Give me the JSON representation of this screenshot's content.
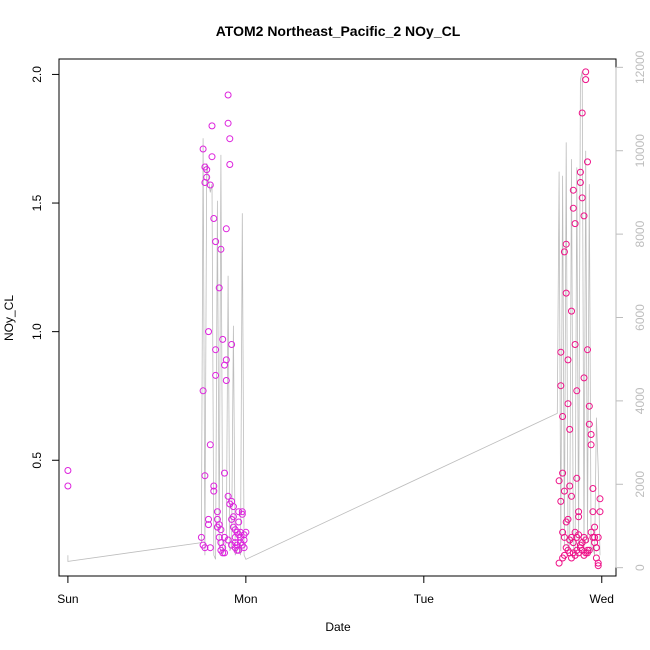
{
  "chart_data": {
    "type": "scatter",
    "title": "ATOM2 Northeast_Pacific_2 NOy_CL",
    "xlabel": "Date",
    "ylabel": "NOy_CL",
    "x_ticks": [
      "Sun",
      "Mon",
      "Tue",
      "Wed"
    ],
    "x_tick_values": [
      0,
      1,
      2,
      3
    ],
    "xlim": [
      -0.05,
      3.08
    ],
    "ylim": [
      0.05,
      2.06
    ],
    "y_ticks": [
      0.5,
      1.0,
      1.5,
      2.0
    ],
    "y_tick_labels": [
      "0.5",
      "1.0",
      "1.5",
      "2.0"
    ],
    "y2lim": [
      -200,
      12200
    ],
    "y2_ticks": [
      0,
      2000,
      4000,
      6000,
      8000,
      10000,
      12000
    ],
    "y2_tick_labels": [
      "0",
      "2000",
      "4000",
      "6000",
      "8000",
      "10000",
      "12000"
    ],
    "grid": false,
    "colors": {
      "points_early": "#dd22dd",
      "points_late": "#ee1188",
      "altitude_line": "#bdbdbd"
    },
    "series": [
      {
        "kind": "points",
        "color": "#dd22dd",
        "x": [
          0.0,
          0.0,
          0.75,
          0.76,
          0.76,
          0.77,
          0.77,
          0.78,
          0.78,
          0.79,
          0.79,
          0.8,
          0.8,
          0.81,
          0.81,
          0.82,
          0.82,
          0.83,
          0.83,
          0.84,
          0.84,
          0.85,
          0.85,
          0.86,
          0.86,
          0.87,
          0.87,
          0.88,
          0.88,
          0.89,
          0.89,
          0.9,
          0.9,
          0.91,
          0.91,
          0.92,
          0.92,
          0.93,
          0.93,
          0.94,
          0.94,
          0.95,
          0.95,
          0.96,
          0.96,
          0.97,
          0.97,
          0.98,
          0.98,
          0.99,
          0.99,
          1.0,
          0.76,
          0.77,
          0.79,
          0.8,
          0.82,
          0.83,
          0.85,
          0.86,
          0.87,
          0.88,
          0.89,
          0.9,
          0.91,
          0.92,
          0.93,
          0.94,
          0.95,
          0.96,
          0.97,
          0.98,
          0.99,
          0.77,
          0.84,
          0.86,
          0.88,
          0.9,
          0.92,
          0.94,
          0.96
        ],
        "y": [
          0.46,
          0.4,
          0.2,
          0.17,
          1.71,
          1.64,
          1.58,
          1.6,
          1.63,
          0.27,
          0.25,
          0.16,
          1.57,
          1.8,
          1.68,
          0.38,
          0.4,
          0.93,
          0.83,
          0.3,
          0.27,
          0.25,
          0.2,
          0.18,
          0.15,
          0.16,
          0.14,
          0.45,
          0.14,
          0.89,
          1.4,
          1.92,
          1.81,
          1.65,
          1.75,
          0.95,
          0.34,
          0.32,
          0.28,
          0.2,
          0.18,
          0.17,
          0.15,
          0.3,
          0.26,
          0.2,
          0.22,
          0.29,
          0.3,
          0.21,
          0.19,
          0.22,
          0.77,
          0.44,
          1.0,
          0.56,
          1.44,
          1.35,
          1.17,
          1.32,
          0.97,
          0.87,
          0.81,
          0.36,
          0.33,
          0.27,
          0.24,
          0.23,
          0.22,
          0.21,
          0.18,
          0.17,
          0.16,
          0.16,
          0.24,
          0.23,
          0.2,
          0.19,
          0.17,
          0.16,
          0.15
        ]
      },
      {
        "kind": "points",
        "color": "#ee1188",
        "x": [
          2.76,
          2.76,
          2.77,
          2.77,
          2.78,
          2.78,
          2.79,
          2.79,
          2.8,
          2.8,
          2.81,
          2.81,
          2.82,
          2.82,
          2.83,
          2.83,
          2.84,
          2.84,
          2.85,
          2.85,
          2.86,
          2.86,
          2.87,
          2.87,
          2.88,
          2.88,
          2.89,
          2.89,
          2.9,
          2.9,
          2.91,
          2.91,
          2.92,
          2.92,
          2.93,
          2.93,
          2.94,
          2.94,
          2.95,
          2.95,
          2.96,
          2.96,
          2.97,
          2.97,
          2.98,
          2.98,
          2.99,
          2.99,
          2.77,
          2.78,
          2.79,
          2.8,
          2.81,
          2.82,
          2.83,
          2.84,
          2.85,
          2.86,
          2.87,
          2.88,
          2.89,
          2.9,
          2.91,
          2.92,
          2.93,
          2.94,
          2.95,
          2.96,
          2.97,
          2.98,
          2.78,
          2.79,
          2.8,
          2.81,
          2.82,
          2.83,
          2.84,
          2.85,
          2.86,
          2.87,
          2.88,
          2.89,
          2.9,
          2.91,
          2.92
        ],
        "y": [
          0.1,
          0.42,
          0.92,
          0.79,
          0.67,
          0.45,
          0.38,
          1.31,
          1.34,
          1.15,
          0.89,
          0.72,
          0.62,
          0.4,
          0.36,
          1.08,
          1.55,
          1.48,
          1.42,
          0.95,
          0.77,
          0.43,
          0.3,
          0.28,
          1.58,
          1.62,
          1.85,
          1.52,
          1.45,
          0.82,
          1.98,
          2.01,
          1.66,
          0.93,
          0.71,
          0.64,
          0.6,
          0.56,
          0.39,
          0.3,
          0.24,
          0.2,
          0.16,
          0.12,
          0.1,
          0.09,
          0.3,
          0.35,
          0.34,
          0.22,
          0.2,
          0.26,
          0.27,
          0.19,
          0.2,
          0.18,
          0.22,
          0.2,
          0.21,
          0.17,
          0.18,
          0.2,
          0.19,
          0.14,
          0.15,
          0.22,
          0.2,
          0.18,
          0.16,
          0.2,
          0.12,
          0.13,
          0.16,
          0.15,
          0.14,
          0.12,
          0.14,
          0.13,
          0.15,
          0.14,
          0.16,
          0.15,
          0.13,
          0.14,
          0.15
        ]
      },
      {
        "kind": "line",
        "color": "#bdbdbd",
        "axis": "right",
        "x": [
          0.0,
          0.0,
          0.75,
          0.76,
          0.77,
          0.78,
          0.79,
          0.8,
          0.81,
          0.82,
          0.83,
          0.84,
          0.85,
          0.86,
          0.87,
          0.88,
          0.89,
          0.9,
          0.91,
          0.92,
          0.93,
          0.94,
          0.95,
          0.96,
          0.97,
          0.98,
          0.99,
          1.0,
          2.75,
          2.76,
          2.77,
          2.78,
          2.79,
          2.8,
          2.81,
          2.82,
          2.83,
          2.84,
          2.85,
          2.86,
          2.87,
          2.88,
          2.89,
          2.9,
          2.91,
          2.92,
          2.93,
          2.94,
          2.95,
          2.96,
          2.97,
          2.98,
          2.99
        ],
        "y": [
          300,
          150,
          600,
          10300,
          300,
          9700,
          9300,
          9000,
          9200,
          300,
          200,
          8800,
          500,
          9900,
          300,
          500,
          600,
          7000,
          400,
          500,
          5800,
          300,
          400,
          500,
          300,
          8500,
          300,
          200,
          3700,
          9500,
          400,
          9400,
          500,
          10200,
          400,
          600,
          9800,
          500,
          300,
          9600,
          400,
          11700,
          11900,
          400,
          10000,
          600,
          9200,
          400,
          500,
          300,
          3600,
          2400,
          300
        ]
      }
    ]
  }
}
